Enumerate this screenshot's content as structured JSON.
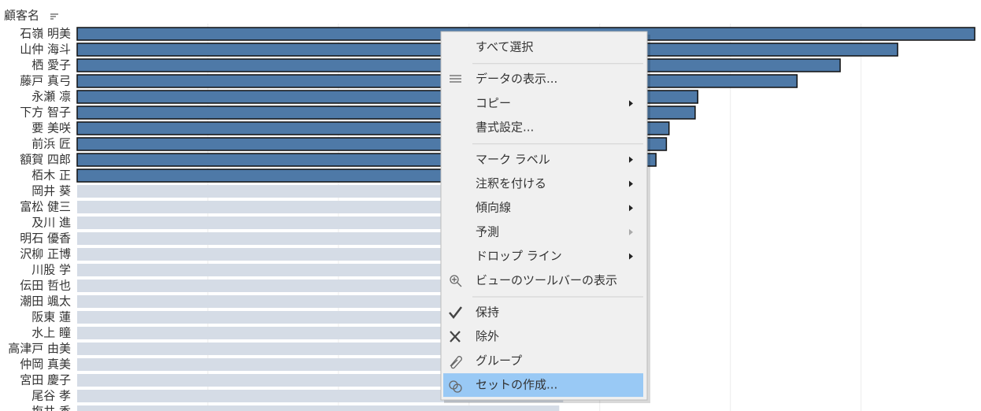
{
  "chart_data": {
    "type": "bar",
    "orientation": "horizontal",
    "axis_title": "顧客名",
    "categories": [
      "石嶺 明美",
      "山仲 海斗",
      "栖 愛子",
      "藤戸 真弓",
      "永瀬 凛",
      "下方 智子",
      "要 美咲",
      "前浜 匠",
      "額賀 四郎",
      "栢木 正",
      "岡井 葵",
      "富松 健三",
      "及川 進",
      "明石 優香",
      "沢柳 正博",
      "川股 学",
      "伝田 哲也",
      "潮田 颯太",
      "阪東 蓮",
      "水上 瞳",
      "高津戸 由美",
      "仲岡 真美",
      "宮田 慶子",
      "尾谷 孝",
      "塩井 香"
    ],
    "values": [
      6.87,
      6.28,
      5.84,
      5.51,
      4.75,
      4.73,
      4.53,
      4.51,
      4.43,
      4.3,
      4.25,
      4.2,
      4.15,
      4.1,
      4.05,
      4.0,
      3.95,
      3.9,
      3.86,
      3.83,
      3.8,
      3.77,
      3.75,
      3.72,
      3.69
    ],
    "selected": [
      true,
      true,
      true,
      true,
      true,
      true,
      true,
      true,
      true,
      true,
      false,
      false,
      false,
      false,
      false,
      false,
      false,
      false,
      false,
      false,
      false,
      false,
      false,
      false,
      false
    ],
    "color": "#4e79a7",
    "unselected_color": "#d5dce6",
    "xlim": [
      0,
      6.9
    ],
    "gridlines": [
      1,
      2,
      3,
      4,
      5,
      6
    ]
  },
  "menu": {
    "groups": [
      [
        {
          "label": "すべて選択",
          "submenu": false,
          "disabled": false
        }
      ],
      [
        {
          "label": "データの表示...",
          "submenu": false,
          "disabled": false
        },
        {
          "label": "コピー",
          "submenu": true,
          "disabled": false
        },
        {
          "label": "書式設定...",
          "submenu": false,
          "disabled": false
        }
      ],
      [
        {
          "label": "マーク ラベル",
          "submenu": true,
          "disabled": false
        },
        {
          "label": "注釈を付ける",
          "submenu": true,
          "disabled": false
        },
        {
          "label": "傾向線",
          "submenu": true,
          "disabled": false
        },
        {
          "label": "予測",
          "submenu": true,
          "disabled": true
        },
        {
          "label": "ドロップ ライン",
          "submenu": true,
          "disabled": false
        },
        {
          "label": "ビューのツールバーの表示",
          "submenu": false,
          "disabled": false
        }
      ],
      [
        {
          "label": "保持",
          "submenu": false,
          "disabled": false
        },
        {
          "label": "除外",
          "submenu": false,
          "disabled": false
        },
        {
          "label": "グループ",
          "submenu": false,
          "disabled": false
        },
        {
          "label": "セットの作成...",
          "submenu": false,
          "disabled": false,
          "highlighted": true
        }
      ]
    ]
  }
}
